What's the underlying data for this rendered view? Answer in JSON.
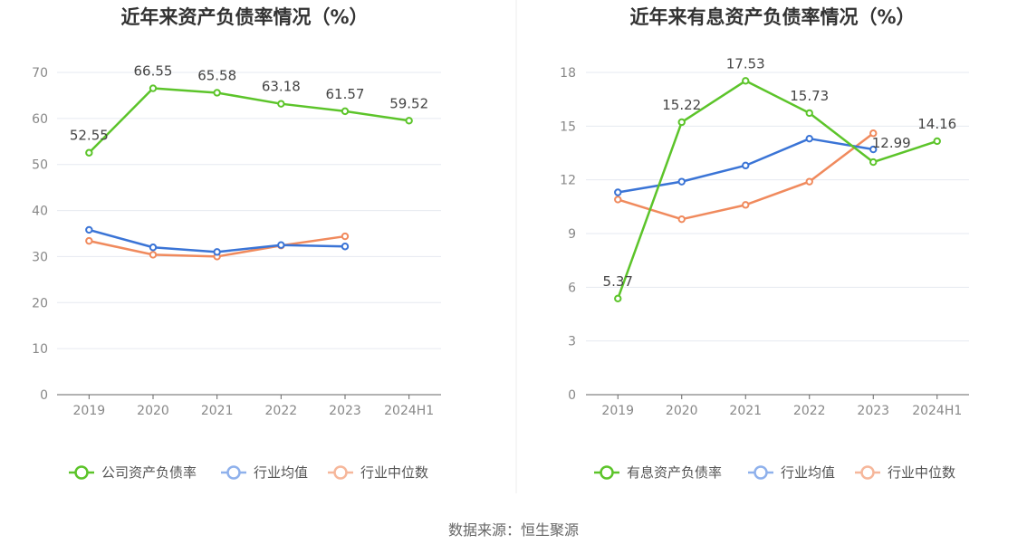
{
  "source": "数据来源：恒生聚源",
  "chart_data": [
    {
      "type": "line",
      "title": "近年来资产负债率情况（%）",
      "categories": [
        "2019",
        "2020",
        "2021",
        "2022",
        "2023",
        "2024H1"
      ],
      "ylim": [
        0,
        70
      ],
      "yticks": [
        0,
        10,
        20,
        30,
        40,
        50,
        60,
        70
      ],
      "grid": true,
      "legend_position": "bottom",
      "series": [
        {
          "name": "公司资产负债率",
          "color": "#5cc42a",
          "values": [
            52.55,
            66.55,
            65.58,
            63.18,
            61.57,
            59.52
          ],
          "labels": [
            "52.55",
            "66.55",
            "65.58",
            "63.18",
            "61.57",
            "59.52"
          ]
        },
        {
          "name": "行业均值",
          "color": "#3a74d6",
          "values": [
            35.8,
            32.0,
            31.0,
            32.5,
            32.2,
            null
          ]
        },
        {
          "name": "行业中位数",
          "color": "#f08a5d",
          "values": [
            33.4,
            30.4,
            30.0,
            32.4,
            34.4,
            null
          ]
        }
      ]
    },
    {
      "type": "line",
      "title": "近年来有息资产负债率情况（%）",
      "categories": [
        "2019",
        "2020",
        "2021",
        "2022",
        "2023",
        "2024H1"
      ],
      "ylim": [
        0,
        18
      ],
      "yticks": [
        0,
        3,
        6,
        9,
        12,
        15,
        18
      ],
      "grid": true,
      "legend_position": "bottom",
      "series": [
        {
          "name": "有息资产负债率",
          "color": "#5cc42a",
          "values": [
            5.37,
            15.22,
            17.53,
            15.73,
            12.99,
            14.16
          ],
          "labels": [
            "5.37",
            "15.22",
            "17.53",
            "15.73",
            "12.99",
            "14.16"
          ]
        },
        {
          "name": "行业均值",
          "color": "#3a74d6",
          "values": [
            11.3,
            11.9,
            12.8,
            14.3,
            13.7,
            null
          ]
        },
        {
          "name": "行业中位数",
          "color": "#f08a5d",
          "values": [
            10.9,
            9.8,
            10.6,
            11.9,
            14.6,
            null
          ]
        }
      ]
    }
  ]
}
